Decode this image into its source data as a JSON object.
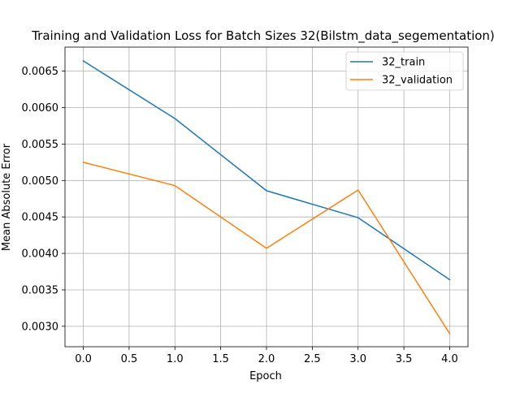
{
  "chart_data": {
    "type": "line",
    "title": "Training and Validation Loss for Batch Sizes 32(Bilstm_data_segementation)",
    "xlabel": "Epoch",
    "ylabel": "Mean Absolute Error",
    "x": [
      0,
      1,
      2,
      3,
      4
    ],
    "xlim": [
      -0.2,
      4.2
    ],
    "ylim": [
      0.00272,
      0.00683
    ],
    "xticks": [
      "0.0",
      "0.5",
      "1.0",
      "1.5",
      "2.0",
      "2.5",
      "3.0",
      "3.5",
      "4.0"
    ],
    "yticks": [
      "0.0030",
      "0.0035",
      "0.0040",
      "0.0045",
      "0.0050",
      "0.0055",
      "0.0060",
      "0.0065"
    ],
    "grid": true,
    "legend_position": "top-right",
    "series": [
      {
        "name": "32_train",
        "color": "#1f77b4",
        "values": [
          0.00664,
          0.00585,
          0.00486,
          0.00449,
          0.00364
        ]
      },
      {
        "name": "32_validation",
        "color": "#ff7f0e",
        "values": [
          0.00525,
          0.00493,
          0.00407,
          0.00487,
          0.0029
        ]
      }
    ]
  }
}
